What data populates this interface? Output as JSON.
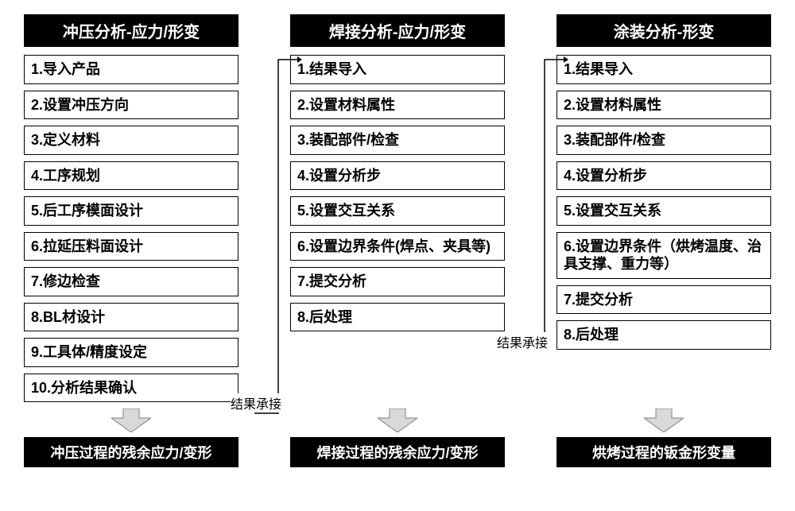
{
  "diagram_type": "flowchart",
  "background_color": "#ffffff",
  "header_bg": "#000000",
  "header_fg": "#ffffff",
  "step_border_color": "#000000",
  "step_bg": "#ffffff",
  "step_fg": "#000000",
  "footer_bg": "#000000",
  "footer_fg": "#ffffff",
  "arrow_fill": "#d9d9d9",
  "arrow_stroke": "#808080",
  "flow_line_color": "#000000",
  "title_fontsize": 20,
  "step_fontsize": 18,
  "footer_fontsize": 18,
  "label_fontsize": 16,
  "columns": [
    {
      "key": "stamping",
      "header": "冲压分析-应力/形变",
      "steps": [
        "1.导入产品",
        "2.设置冲压方向",
        "3.定义材料",
        "4.工序规划",
        "5.后工序模面设计",
        "6.拉延压料面设计",
        "7.修边检查",
        "8.BL材设计",
        "9.工具体/精度设定",
        "10.分析结果确认"
      ],
      "footer": "冲压过程的残余应力/变形"
    },
    {
      "key": "welding",
      "header": "焊接分析-应力/形变",
      "steps": [
        "1.结果导入",
        "2.设置材料属性",
        "3.装配部件/检查",
        "4.设置分析步",
        "5.设置交互关系",
        "6.设置边界条件(焊点、夹具等)",
        "7.提交分析",
        "8.后处理"
      ],
      "footer": "焊接过程的残余应力/变形"
    },
    {
      "key": "painting",
      "header": "涂装分析-形变",
      "steps": [
        "1.结果导入",
        "2.设置材料属性",
        "3.装配部件/检查",
        "4.设置分析步",
        "5.设置交互关系",
        "6.设置边界条件（烘烤温度、治具支撑、重力等）",
        "7.提交分析",
        "8.后处理"
      ],
      "footer": "烘烤过程的钣金形变量"
    }
  ],
  "flow_labels": {
    "a": "结果承接",
    "b": "结果承接"
  }
}
